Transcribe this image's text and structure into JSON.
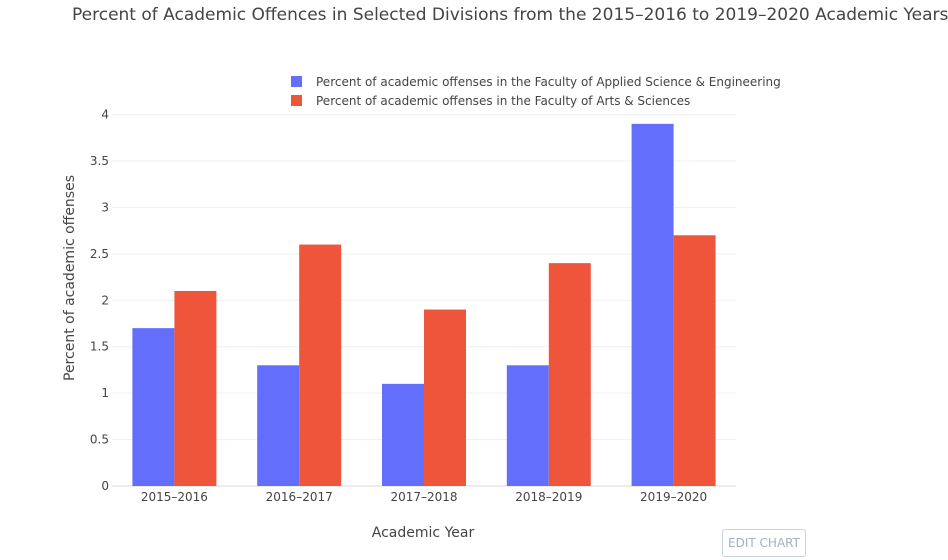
{
  "chart_data": {
    "type": "bar",
    "title": "Percent of Academic Offences in Selected Divisions from the 2015–2016 to 2019–2020 Academic Years",
    "xlabel": "Academic Year",
    "ylabel": "Percent of academic offenses",
    "categories": [
      "2015–2016",
      "2016–2017",
      "2017–2018",
      "2018–2019",
      "2019–2020"
    ],
    "ylim": [
      0,
      4.2
    ],
    "yticks": [
      0,
      0.5,
      1,
      1.5,
      2,
      2.5,
      3,
      3.5,
      4
    ],
    "ytick_labels": [
      "0",
      "0.5",
      "1",
      "1.5",
      "2",
      "2.5",
      "3",
      "3.5",
      "4"
    ],
    "grid": true,
    "legend_position": "top-right",
    "series": [
      {
        "name": "Percent of academic offenses in the Faculty of Applied Science & Engineering",
        "color": "#636efa",
        "values": [
          1.7,
          1.3,
          1.1,
          1.3,
          3.9
        ]
      },
      {
        "name": "Percent of academic offenses in the Faculty of Arts & Sciences",
        "color": "#ef553b",
        "values": [
          2.1,
          2.6,
          1.9,
          2.4,
          2.7
        ]
      }
    ]
  },
  "toolbar": {
    "edit_chart_label": "EDIT CHART"
  }
}
